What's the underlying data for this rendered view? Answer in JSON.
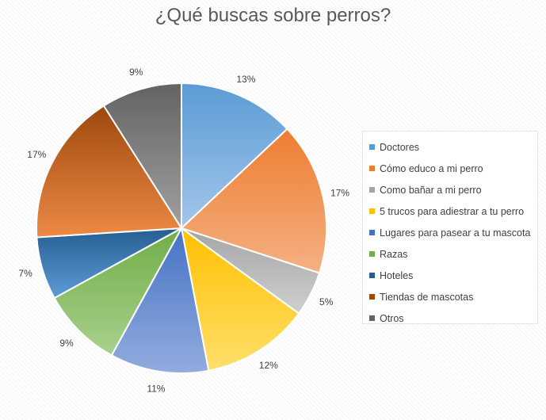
{
  "chart_data": {
    "type": "pie",
    "title": "¿Qué buscas sobre perros?",
    "categories": [
      "Doctores",
      "Cómo educo a mi perro",
      "Como bañar a mi perro",
      "5 trucos para adiestrar a tu perro",
      "Lugares para pasear a tu mascota",
      "Razas",
      "Hoteles",
      "Tiendas de mascotas",
      "Otros"
    ],
    "values": [
      13,
      17,
      5,
      12,
      11,
      9,
      7,
      17,
      9
    ],
    "labels": [
      "13%",
      "17%",
      "5%",
      "12%",
      "11%",
      "9%",
      "7%",
      "17%",
      "9%"
    ],
    "colors": [
      "#5b9bd5",
      "#ed7d31",
      "#a5a5a5",
      "#ffc000",
      "#4472c4",
      "#70ad47",
      "#255e91",
      "#9e480e",
      "#636363"
    ],
    "light_colors": [
      "#a3c6ea",
      "#f4b183",
      "#cfcfcf",
      "#ffdf6b",
      "#93acdf",
      "#a9d18e",
      "#5e9bd6",
      "#ed8a45",
      "#a0a0a0"
    ],
    "legend": "right"
  }
}
